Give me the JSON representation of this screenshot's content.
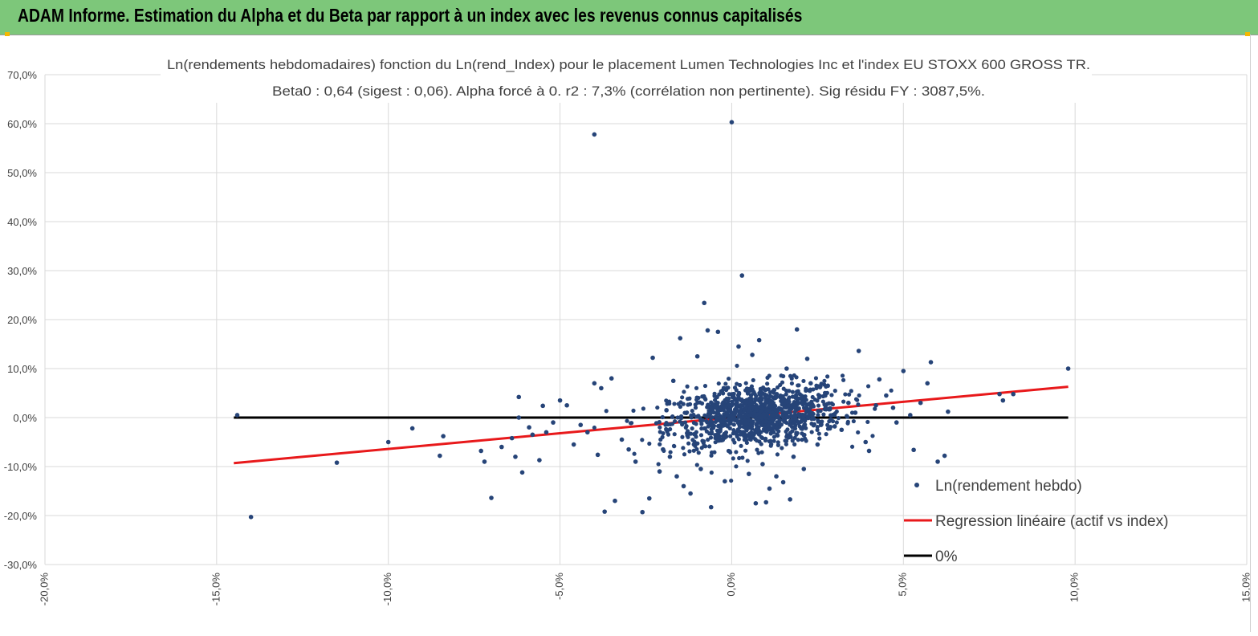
{
  "banner": {
    "title": "ADAM Informe. Estimation du Alpha et du Beta par rapport à un index avec les revenus connus capitalisés"
  },
  "chart_data": {
    "type": "scatter",
    "title": "Ln(rendements hebdomadaires) fonction du Ln(rend_Index) pour le placement Lumen Technologies Inc et l'index EU STOXX 600 GROSS TR.",
    "subtitle": "Beta0 : 0,64 (sigest : 0,06). Alpha forcé à 0. r2 : 7,3% (corrélation non pertinente). Sig résidu FY : 3087,5%.",
    "xlabel": "",
    "ylabel": "",
    "xlim": [
      -20,
      15
    ],
    "ylim": [
      -30,
      70
    ],
    "x_ticks": [
      -20,
      -15,
      -10,
      -5,
      0,
      5,
      10,
      15
    ],
    "x_tick_labels": [
      "-20,0%",
      "-15,0%",
      "-10,0%",
      "-5,0%",
      "0,0%",
      "5,0%",
      "10,0%",
      "15,0%"
    ],
    "y_ticks": [
      70,
      60,
      50,
      40,
      30,
      20,
      10,
      0,
      -10,
      -20,
      -30
    ],
    "y_tick_labels": [
      "70,0%",
      "60,0%",
      "50,0%",
      "40,0%",
      "30,0%",
      "20,0%",
      "10,0%",
      "0,0%",
      "-10,0%",
      "-20,0%",
      "-30,0%"
    ],
    "grid": true,
    "legend_position": "bottom-right",
    "series": [
      {
        "name": "Ln(rendement hebdo)",
        "kind": "scatter",
        "color": "#264478",
        "points": [
          [
            -14.4,
            0.5
          ],
          [
            -14.0,
            -20.3
          ],
          [
            -11.5,
            -9.2
          ],
          [
            -10.0,
            -5.0
          ],
          [
            -9.3,
            -2.2
          ],
          [
            -8.5,
            -7.8
          ],
          [
            -8.4,
            -3.8
          ],
          [
            -7.3,
            -6.8
          ],
          [
            -7.2,
            -9.0
          ],
          [
            -7.0,
            -16.4
          ],
          [
            -6.7,
            -6.0
          ],
          [
            -6.4,
            -4.2
          ],
          [
            -6.3,
            -8.0
          ],
          [
            -6.2,
            4.2
          ],
          [
            -6.2,
            0.0
          ],
          [
            -6.1,
            -11.2
          ],
          [
            -5.9,
            -2.0
          ],
          [
            -5.8,
            -3.5
          ],
          [
            -5.6,
            -8.7
          ],
          [
            -5.5,
            2.4
          ],
          [
            -5.4,
            -3.0
          ],
          [
            -5.2,
            -1.0
          ],
          [
            -5.0,
            3.5
          ],
          [
            -4.8,
            2.5
          ],
          [
            -4.6,
            -5.5
          ],
          [
            -4.4,
            -1.5
          ],
          [
            -4.2,
            -3.0
          ],
          [
            -4.0,
            7.0
          ],
          [
            -4.0,
            57.8
          ],
          [
            -3.9,
            -7.6
          ],
          [
            -3.8,
            6.0
          ],
          [
            -3.7,
            -19.2
          ],
          [
            -3.5,
            8.0
          ],
          [
            -3.4,
            -17.0
          ],
          [
            -3.2,
            -4.5
          ],
          [
            -3.0,
            -6.5
          ],
          [
            -2.8,
            -9.0
          ],
          [
            -2.6,
            -19.3
          ],
          [
            -2.4,
            -16.5
          ],
          [
            -2.3,
            12.2
          ],
          [
            -2.1,
            -11.0
          ],
          [
            -2.0,
            -6.5
          ],
          [
            -1.9,
            1.5
          ],
          [
            -1.9,
            -2.5
          ],
          [
            -1.8,
            -8.0
          ],
          [
            -1.7,
            7.5
          ],
          [
            -1.6,
            -12.0
          ],
          [
            -1.5,
            16.2
          ],
          [
            -1.4,
            -14.0
          ],
          [
            -1.3,
            -3.2
          ],
          [
            -1.2,
            -15.5
          ],
          [
            -1.1,
            -5.5
          ],
          [
            -1.0,
            12.5
          ],
          [
            -0.9,
            -10.5
          ],
          [
            -0.8,
            23.4
          ],
          [
            -0.7,
            17.8
          ],
          [
            -0.6,
            -18.3
          ],
          [
            -0.4,
            17.5
          ],
          [
            -0.2,
            -13.0
          ],
          [
            0.0,
            60.3
          ],
          [
            0.2,
            14.5
          ],
          [
            0.3,
            29.0
          ],
          [
            0.5,
            -11.5
          ],
          [
            0.6,
            12.8
          ],
          [
            0.7,
            -17.5
          ],
          [
            0.8,
            15.8
          ],
          [
            0.9,
            -9.5
          ],
          [
            1.0,
            -17.3
          ],
          [
            1.1,
            -14.5
          ],
          [
            1.3,
            -12.0
          ],
          [
            1.5,
            -13.2
          ],
          [
            1.6,
            10.0
          ],
          [
            1.7,
            -16.7
          ],
          [
            1.8,
            -8.0
          ],
          [
            1.9,
            18.0
          ],
          [
            2.1,
            -10.5
          ],
          [
            2.2,
            12.0
          ],
          [
            2.3,
            7.0
          ],
          [
            2.5,
            -5.5
          ],
          [
            2.6,
            -1.5
          ],
          [
            2.8,
            6.5
          ],
          [
            3.0,
            -1.8
          ],
          [
            3.2,
            -2.5
          ],
          [
            3.4,
            3.0
          ],
          [
            3.6,
            1.0
          ],
          [
            3.7,
            13.6
          ],
          [
            3.9,
            -5.0
          ],
          [
            4.0,
            -6.8
          ],
          [
            4.2,
            2.5
          ],
          [
            4.3,
            7.8
          ],
          [
            4.5,
            4.5
          ],
          [
            4.7,
            2.0
          ],
          [
            4.8,
            -1.0
          ],
          [
            5.0,
            9.5
          ],
          [
            5.2,
            0.5
          ],
          [
            5.3,
            -6.6
          ],
          [
            5.5,
            3.0
          ],
          [
            5.7,
            7.0
          ],
          [
            5.8,
            11.3
          ],
          [
            6.0,
            -9.0
          ],
          [
            6.2,
            -7.8
          ],
          [
            6.3,
            1.2
          ],
          [
            7.8,
            4.8
          ],
          [
            7.9,
            3.5
          ],
          [
            8.2,
            4.8
          ],
          [
            9.8,
            10.0
          ]
        ]
      },
      {
        "name": "Regression linéaire (actif vs index)",
        "kind": "line",
        "color": "#e8191b",
        "points": [
          [
            -14.5,
            -9.3
          ],
          [
            9.8,
            6.3
          ]
        ]
      },
      {
        "name": "0%",
        "kind": "line",
        "color": "#000000",
        "points": [
          [
            -14.5,
            0
          ],
          [
            9.8,
            0
          ]
        ]
      }
    ]
  }
}
